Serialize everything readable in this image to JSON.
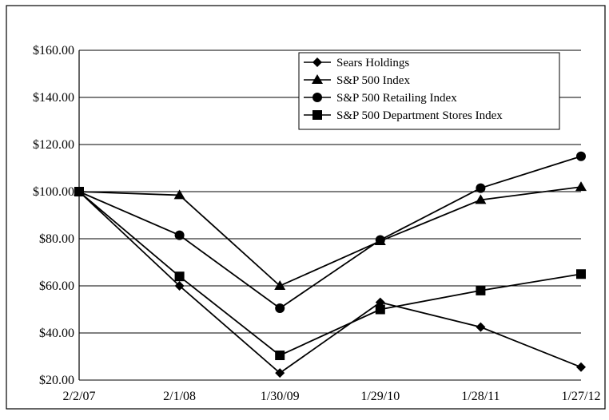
{
  "chart_data": {
    "type": "line",
    "title": "",
    "xlabel": "",
    "ylabel": "",
    "x": [
      "2/2/07",
      "2/1/08",
      "1/30/09",
      "1/29/10",
      "1/28/11",
      "1/27/12"
    ],
    "ylim": [
      20,
      160
    ],
    "yticks": [
      20,
      40,
      60,
      80,
      100,
      120,
      140,
      160
    ],
    "ytick_labels": [
      "$20.00",
      "$40.00",
      "$60.00",
      "$80.00",
      "$100.00",
      "$120.00",
      "$140.00",
      "$160.00"
    ],
    "grid": true,
    "legend_position": "top-right",
    "series": [
      {
        "name": "Sears Holdings",
        "marker": "diamond",
        "values": [
          100,
          60,
          23,
          53,
          42.5,
          25.5
        ]
      },
      {
        "name": "S&P 500 Index",
        "marker": "triangle",
        "values": [
          100,
          98.5,
          60,
          79,
          96.5,
          102
        ]
      },
      {
        "name": "S&P 500 Retailing Index",
        "marker": "circle",
        "values": [
          100,
          81.5,
          50.5,
          79.5,
          101.5,
          115
        ]
      },
      {
        "name": "S&P 500 Department Stores Index",
        "marker": "square",
        "values": [
          100,
          64,
          30.5,
          50,
          58,
          65
        ]
      }
    ]
  }
}
